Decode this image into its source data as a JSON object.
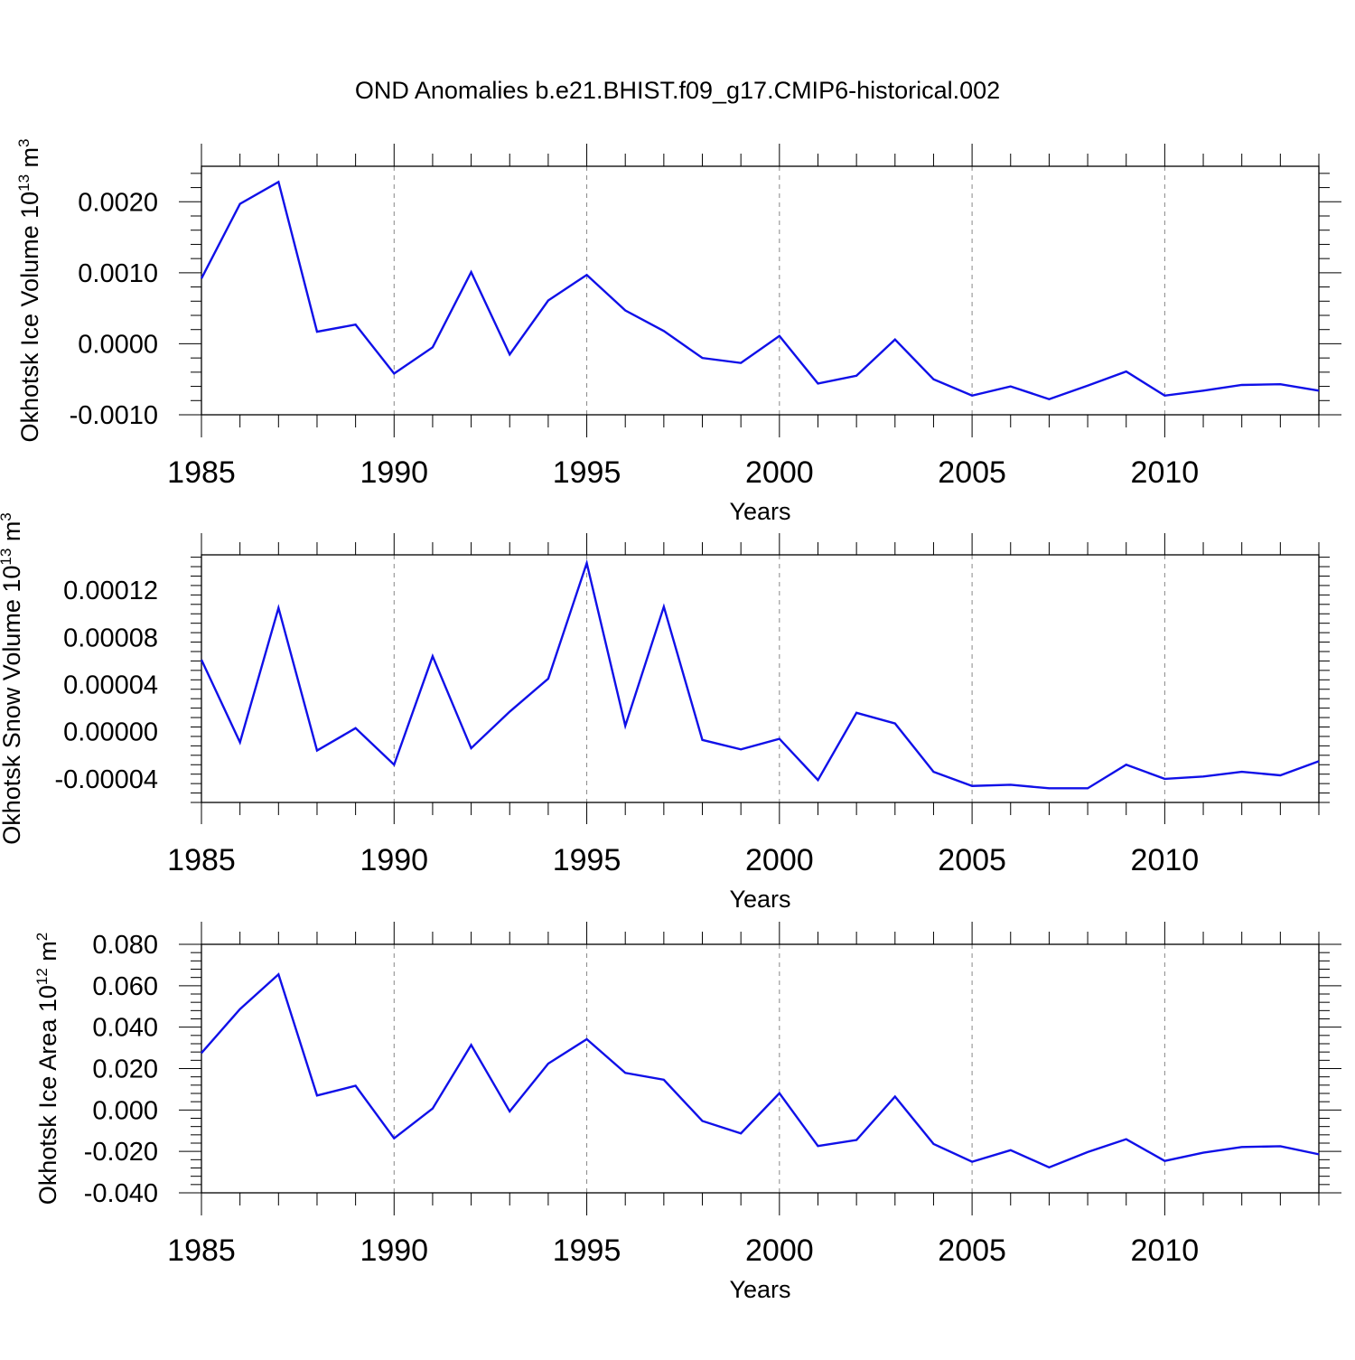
{
  "title": "OND Anomalies b.e21.BHIST.f09_g17.CMIP6-historical.002",
  "chart_data": [
    {
      "type": "line",
      "ylabel_main": "Okhotsk Ice Volume 10",
      "ylabel_exp": "13",
      "ylabel_unit": " m",
      "ylabel_unit_exp": "3",
      "xlabel": "Years",
      "xlim": [
        1985,
        2014
      ],
      "ylim": [
        -0.001,
        0.0025
      ],
      "yticks": [
        -0.001,
        0.0,
        0.001,
        0.002
      ],
      "ytick_labels": [
        "-0.0010",
        "0.0000",
        "0.0010",
        "0.0020"
      ],
      "xticks": [
        1985,
        1990,
        1995,
        2000,
        2005,
        2010
      ],
      "xtick_labels": [
        "1985",
        "1990",
        "1995",
        "2000",
        "2005",
        "2010"
      ],
      "grid": "vertical-dashed",
      "series": [
        {
          "name": "Okhotsk Ice Volume",
          "color": "#1010e8",
          "x": [
            1985,
            1986,
            1987,
            1988,
            1989,
            1990,
            1991,
            1992,
            1993,
            1994,
            1995,
            1996,
            1997,
            1998,
            1999,
            2000,
            2001,
            2002,
            2003,
            2004,
            2005,
            2006,
            2007,
            2008,
            2009,
            2010,
            2011,
            2012,
            2013,
            2014
          ],
          "values": [
            0.00092,
            0.00197,
            0.00228,
            0.00017,
            0.00027,
            -0.00042,
            -5e-05,
            0.00101,
            -0.00015,
            0.00061,
            0.00097,
            0.00047,
            0.00018,
            -0.0002,
            -0.00027,
            0.00011,
            -0.00056,
            -0.00045,
            6e-05,
            -0.0005,
            -0.00073,
            -0.0006,
            -0.00078,
            -0.00059,
            -0.00039,
            -0.00073,
            -0.00066,
            -0.00058,
            -0.00057,
            -0.00066
          ]
        }
      ]
    },
    {
      "type": "line",
      "ylabel_main": "Okhotsk Snow Volume 10",
      "ylabel_exp": "13",
      "ylabel_unit": " m",
      "ylabel_unit_exp": "3",
      "xlabel": "Years",
      "xlim": [
        1985,
        2014
      ],
      "ylim": [
        -6e-05,
        0.00015
      ],
      "yticks": [
        -4e-05,
        0.0,
        4e-05,
        8e-05,
        0.00012
      ],
      "ytick_labels": [
        "-0.00004",
        "0.00000",
        "0.00004",
        "0.00008",
        "0.00012"
      ],
      "xticks": [
        1985,
        1990,
        1995,
        2000,
        2005,
        2010
      ],
      "xtick_labels": [
        "1985",
        "1990",
        "1995",
        "2000",
        "2005",
        "2010"
      ],
      "grid": "vertical-dashed",
      "series": [
        {
          "name": "Okhotsk Snow Volume",
          "color": "#1010e8",
          "x": [
            1985,
            1986,
            1987,
            1988,
            1989,
            1990,
            1991,
            1992,
            1993,
            1994,
            1995,
            1996,
            1997,
            1998,
            1999,
            2000,
            2001,
            2002,
            2003,
            2004,
            2005,
            2006,
            2007,
            2008,
            2009,
            2010,
            2011,
            2012,
            2013,
            2014
          ],
          "values": [
            6.1e-05,
            -9e-06,
            0.000105,
            -1.6e-05,
            3e-06,
            -2.8e-05,
            6.4e-05,
            -1.4e-05,
            1.7e-05,
            4.5e-05,
            0.000143,
            5e-06,
            0.000106,
            -7e-06,
            -1.5e-05,
            -6e-06,
            -4.1e-05,
            1.6e-05,
            7e-06,
            -3.4e-05,
            -4.6e-05,
            -4.5e-05,
            -4.8e-05,
            -4.8e-05,
            -2.8e-05,
            -4e-05,
            -3.8e-05,
            -3.4e-05,
            -3.7e-05,
            -2.5e-05
          ]
        }
      ]
    },
    {
      "type": "line",
      "ylabel_main": "Okhotsk Ice Area 10",
      "ylabel_exp": "12",
      "ylabel_unit": " m",
      "ylabel_unit_exp": "2",
      "xlabel": "Years",
      "xlim": [
        1985,
        2014
      ],
      "ylim": [
        -0.04,
        0.08
      ],
      "yticks": [
        -0.04,
        -0.02,
        0.0,
        0.02,
        0.04,
        0.06,
        0.08
      ],
      "ytick_labels": [
        "-0.040",
        "-0.020",
        "0.000",
        "0.020",
        "0.040",
        "0.060",
        "0.080"
      ],
      "xticks": [
        1985,
        1990,
        1995,
        2000,
        2005,
        2010
      ],
      "xtick_labels": [
        "1985",
        "1990",
        "1995",
        "2000",
        "2005",
        "2010"
      ],
      "grid": "vertical-dashed",
      "series": [
        {
          "name": "Okhotsk Ice Area",
          "color": "#1010e8",
          "x": [
            1985,
            1986,
            1987,
            1988,
            1989,
            1990,
            1991,
            1992,
            1993,
            1994,
            1995,
            1996,
            1997,
            1998,
            1999,
            2000,
            2001,
            2002,
            2003,
            2004,
            2005,
            2006,
            2007,
            2008,
            2009,
            2010,
            2011,
            2012,
            2013,
            2014
          ],
          "values": [
            0.0275,
            0.0487,
            0.0655,
            0.007,
            0.0117,
            -0.0137,
            0.0007,
            0.0314,
            -0.0007,
            0.0224,
            0.0342,
            0.0179,
            0.0146,
            -0.0053,
            -0.0113,
            0.0081,
            -0.0174,
            -0.0145,
            0.0065,
            -0.0164,
            -0.025,
            -0.0194,
            -0.0277,
            -0.0203,
            -0.0141,
            -0.0246,
            -0.0206,
            -0.0179,
            -0.0175,
            -0.0214
          ]
        }
      ]
    }
  ]
}
